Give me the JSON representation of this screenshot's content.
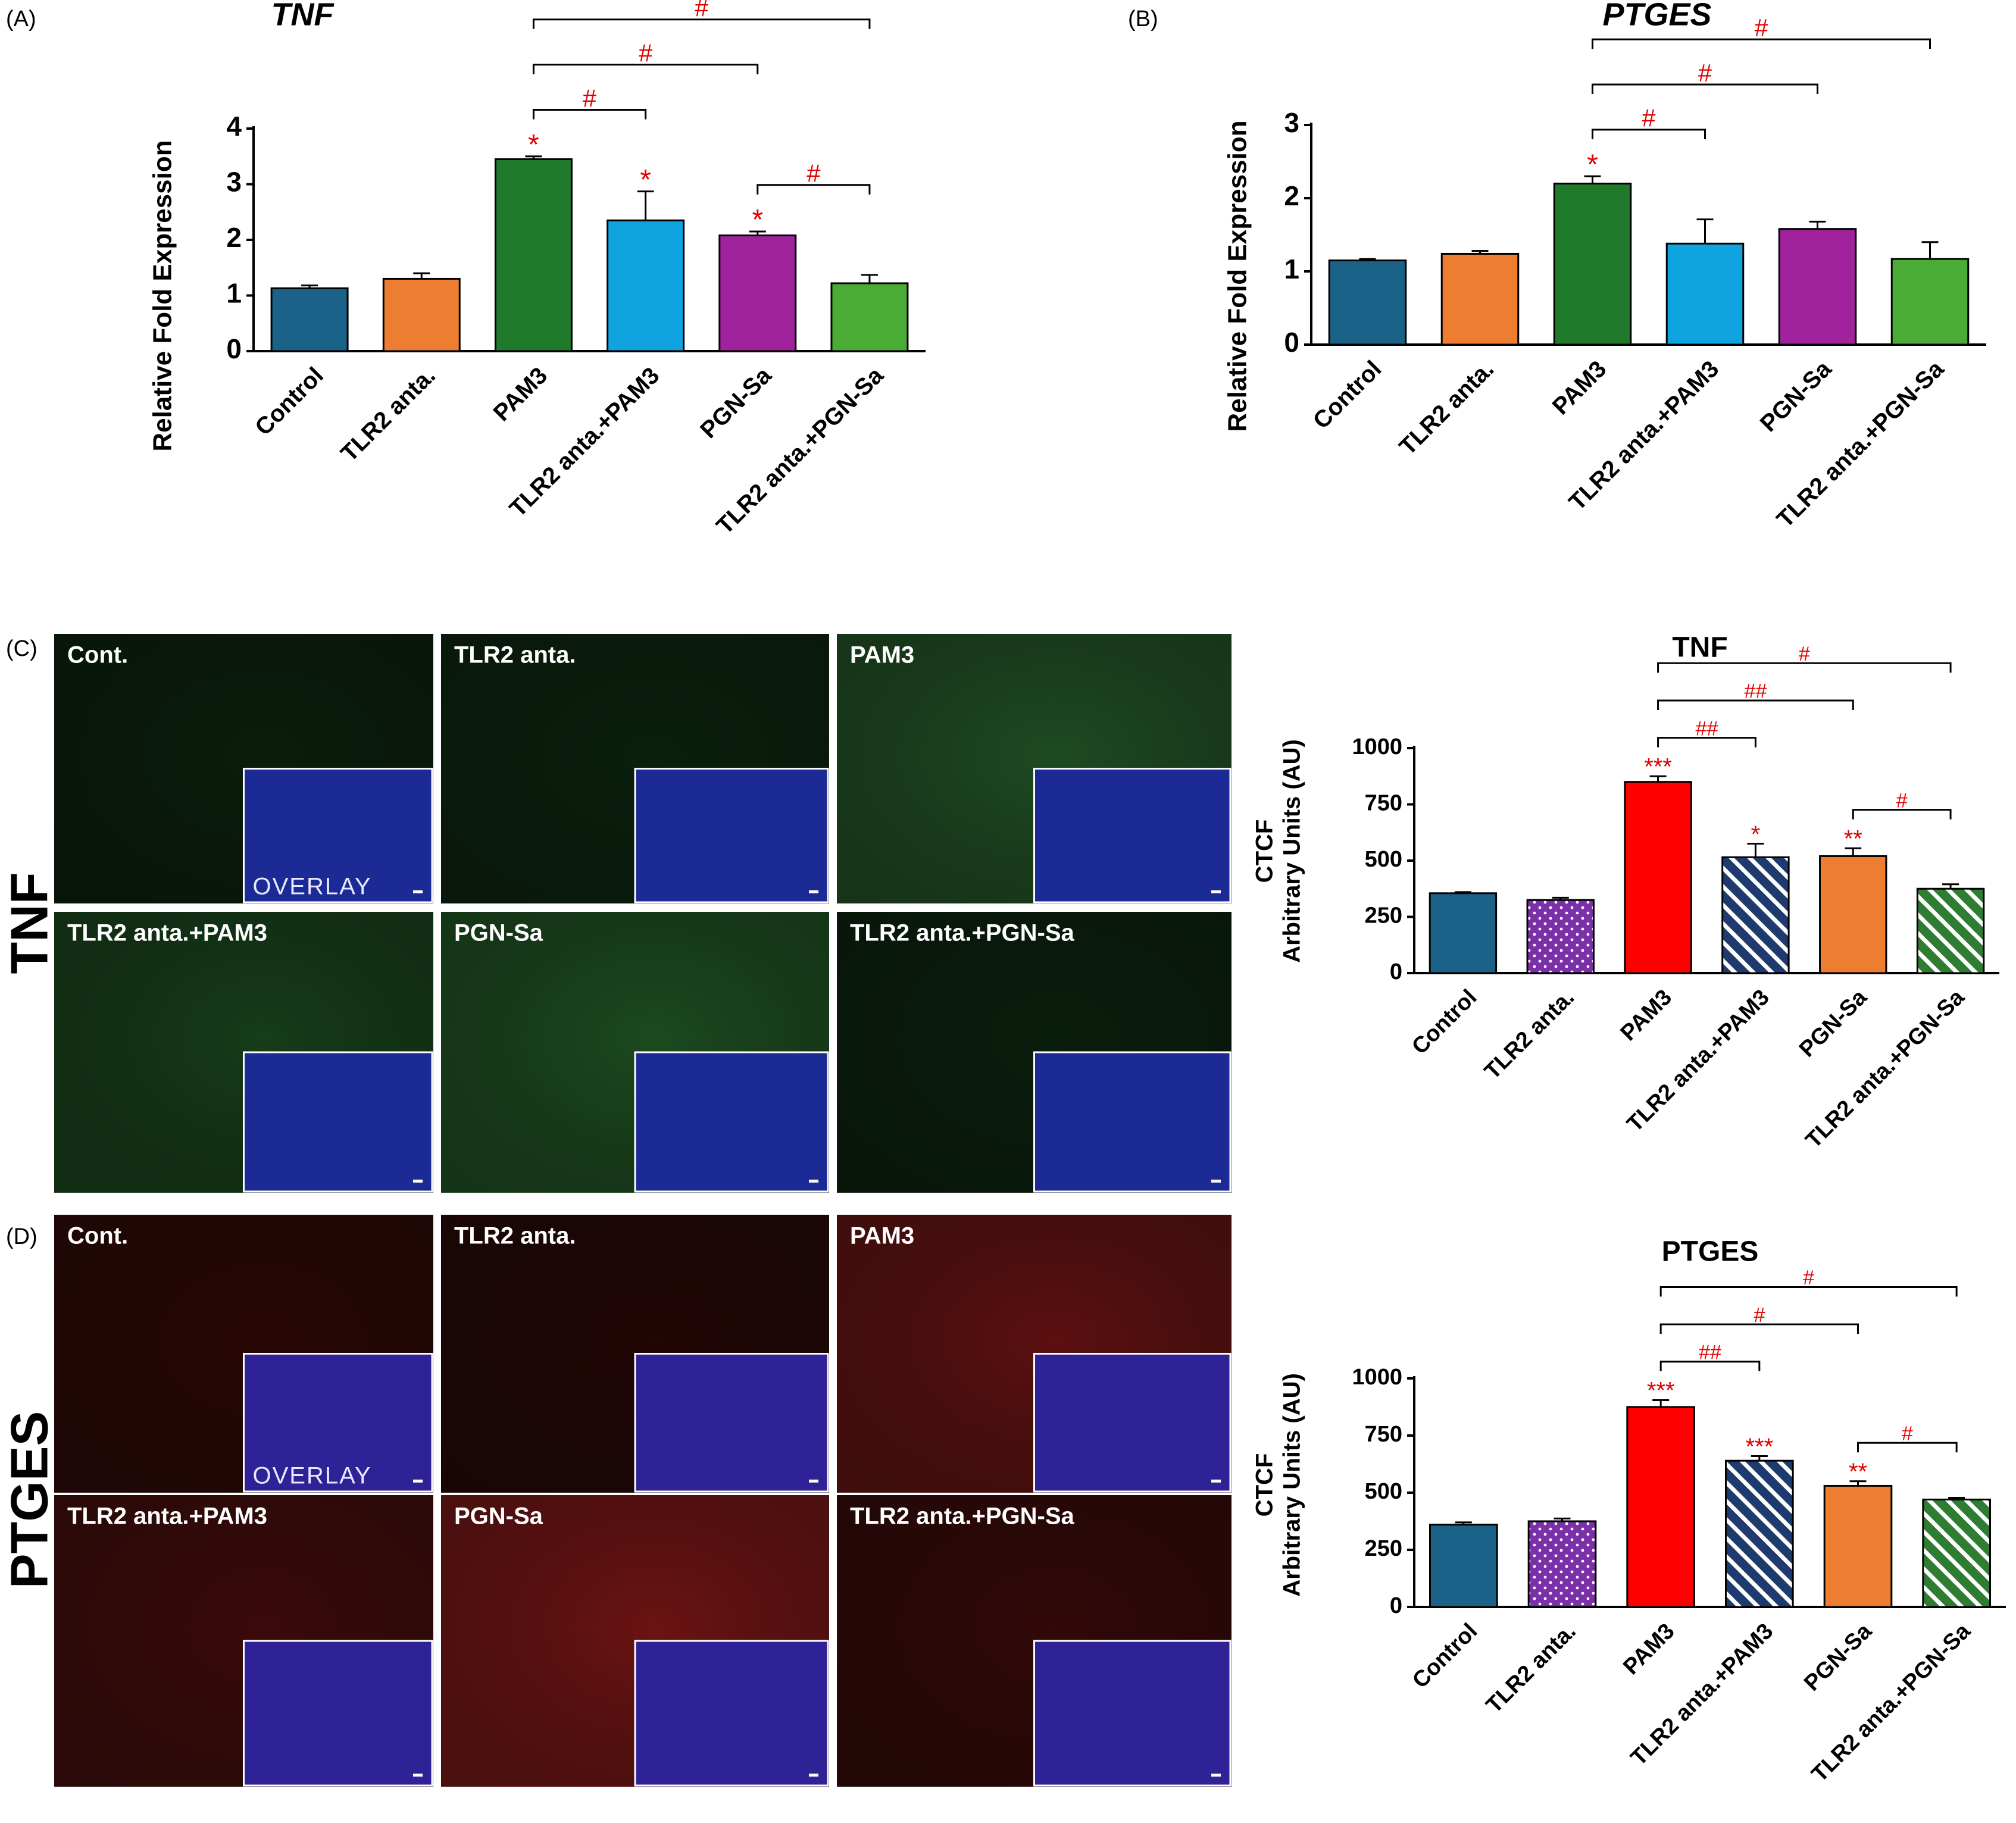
{
  "figure_labels": [
    "(A)",
    "(B)",
    "(C)",
    "(D)"
  ],
  "micrographs": [
    {
      "row_label": "TNF",
      "overlay": "OVERLAY",
      "panels": [
        "Cont.",
        "TLR2 anta.",
        "PAM3",
        "TLR2 anta.+PAM3",
        "PGN-Sa",
        "TLR2 anta.+PGN-Sa"
      ],
      "colors": [
        "#0a1d0c",
        "#0b200e",
        "#1f4b22",
        "#163d19",
        "#1c4a1f",
        "#0a1e0d"
      ],
      "inset_color": "#1c2a96"
    },
    {
      "row_label": "PTGES",
      "overlay": "OVERLAY",
      "panels": [
        "Cont.",
        "TLR2 anta.",
        "PAM3",
        "TLR2 anta.+PAM3",
        "PGN-Sa",
        "TLR2 anta.+PGN-Sa"
      ],
      "colors": [
        "#2a0707",
        "#220505",
        "#5c1010",
        "#3c0a0a",
        "#6c1313",
        "#320808"
      ],
      "inset_color": "#2e2296"
    }
  ],
  "chart_data": [
    {
      "type": "bar",
      "title": "TNF",
      "ylabel": "Relative Fold Expression",
      "categories": [
        "Control",
        "TLR2 anta.",
        "PAM3",
        "TLR2 anta.+PAM3",
        "PGN-Sa",
        "TLR2 anta.+PGN-Sa"
      ],
      "values": [
        1.13,
        1.3,
        3.45,
        2.35,
        2.08,
        1.22
      ],
      "errors": [
        0.05,
        0.1,
        0.05,
        0.52,
        0.07,
        0.15
      ],
      "colors": [
        "#1b6289",
        "#ed7d31",
        "#1f7a2c",
        "#0fa4df",
        "#a0229c",
        "#4aab35"
      ],
      "patterns": [
        "solid",
        "solid",
        "solid",
        "solid",
        "solid",
        "solid"
      ],
      "ylim": [
        0,
        4
      ],
      "yticks": [
        0,
        1,
        2,
        3,
        4
      ],
      "stars": [
        null,
        null,
        "*",
        "*",
        "*",
        null
      ],
      "brackets": [
        {
          "label": "#",
          "span": [
            "PAM3",
            "TLR2 anta.+PAM3"
          ]
        },
        {
          "label": "#",
          "span": [
            "PGN-Sa",
            "TLR2 anta.+PGN-Sa"
          ]
        },
        {
          "label": "#",
          "span": [
            "PAM3",
            "PGN-Sa"
          ]
        },
        {
          "label": "#",
          "span": [
            "PAM3",
            "TLR2 anta.+PGN-Sa"
          ]
        }
      ]
    },
    {
      "type": "bar",
      "title": "PTGES",
      "ylabel": "Relative Fold Expression",
      "categories": [
        "Control",
        "TLR2 anta.",
        "PAM3",
        "TLR2 anta.+PAM3",
        "PGN-Sa",
        "TLR2 anta.+PGN-Sa"
      ],
      "values": [
        1.15,
        1.24,
        2.2,
        1.38,
        1.58,
        1.17
      ],
      "errors": [
        0.02,
        0.04,
        0.1,
        0.33,
        0.1,
        0.23
      ],
      "colors": [
        "#1b6289",
        "#ed7d31",
        "#1f7a2c",
        "#0fa4df",
        "#a0229c",
        "#4aab35"
      ],
      "patterns": [
        "solid",
        "solid",
        "solid",
        "solid",
        "solid",
        "solid"
      ],
      "ylim": [
        0,
        3
      ],
      "yticks": [
        0,
        1,
        2,
        3
      ],
      "stars": [
        null,
        null,
        "*",
        null,
        null,
        null
      ],
      "brackets": [
        {
          "label": "#",
          "span": [
            "PAM3",
            "TLR2 anta.+PAM3"
          ]
        },
        {
          "label": "#",
          "span": [
            "PAM3",
            "PGN-Sa"
          ]
        },
        {
          "label": "#",
          "span": [
            "PAM3",
            "TLR2 anta.+PGN-Sa"
          ]
        }
      ]
    },
    {
      "type": "bar",
      "title": "TNF",
      "ylabel": [
        "CTCF",
        "Arbitrary Units (AU)"
      ],
      "categories": [
        "Control",
        "TLR2 anta.",
        "PAM3",
        "TLR2 anta.+PAM3",
        "PGN-Sa",
        "TLR2 anta.+PGN-Sa"
      ],
      "values": [
        355,
        325,
        850,
        515,
        520,
        375
      ],
      "errors": [
        5,
        10,
        25,
        60,
        35,
        20
      ],
      "colors": [
        "#1b6289",
        "#7b2fa8",
        "#ff0000",
        "#1f3a6e",
        "#ed7d31",
        "#2e7d32"
      ],
      "patterns": [
        "solid",
        "dots",
        "solid",
        "hatch",
        "solid",
        "hatch"
      ],
      "ylim": [
        0,
        1000
      ],
      "yticks": [
        0,
        250,
        500,
        750,
        1000
      ],
      "stars": [
        null,
        null,
        "***",
        "*",
        "**",
        null
      ],
      "brackets": [
        {
          "label": "##",
          "span": [
            "PAM3",
            "TLR2 anta.+PAM3"
          ]
        },
        {
          "label": "#",
          "span": [
            "PGN-Sa",
            "TLR2 anta.+PGN-Sa"
          ]
        },
        {
          "label": "##",
          "span": [
            "PAM3",
            "PGN-Sa"
          ]
        },
        {
          "label": "#",
          "span": [
            "PAM3",
            "TLR2 anta.+PGN-Sa"
          ]
        }
      ]
    },
    {
      "type": "bar",
      "title": "PTGES",
      "ylabel": [
        "CTCF",
        "Arbitrary Units (AU)"
      ],
      "categories": [
        "Control",
        "TLR2 anta.",
        "PAM3",
        "TLR2 anta.+PAM3",
        "PGN-Sa",
        "TLR2 anta.+PGN-Sa"
      ],
      "values": [
        360,
        375,
        875,
        640,
        530,
        470
      ],
      "errors": [
        10,
        12,
        30,
        20,
        20,
        8
      ],
      "colors": [
        "#1b6289",
        "#7b2fa8",
        "#ff0000",
        "#1f3a6e",
        "#ed7d31",
        "#2e7d32"
      ],
      "patterns": [
        "solid",
        "dots",
        "solid",
        "hatch",
        "solid",
        "hatch"
      ],
      "ylim": [
        0,
        1000
      ],
      "yticks": [
        0,
        250,
        500,
        750,
        1000
      ],
      "stars": [
        null,
        null,
        "***",
        "***",
        "**",
        null
      ],
      "brackets": [
        {
          "label": "##",
          "span": [
            "PAM3",
            "TLR2 anta.+PAM3"
          ]
        },
        {
          "label": "#",
          "span": [
            "PGN-Sa",
            "TLR2 anta.+PGN-Sa"
          ]
        },
        {
          "label": "#",
          "span": [
            "PAM3",
            "PGN-Sa"
          ]
        },
        {
          "label": "#",
          "span": [
            "PAM3",
            "TLR2 anta.+PGN-Sa"
          ]
        }
      ]
    }
  ]
}
